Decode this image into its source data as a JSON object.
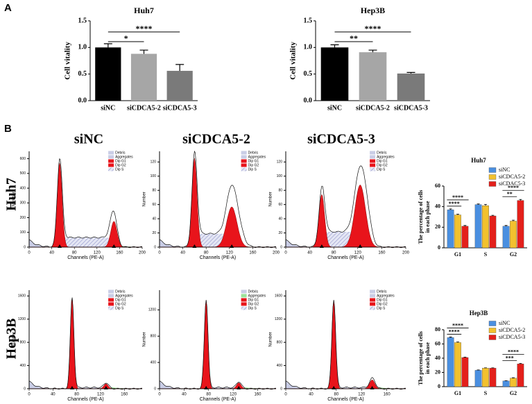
{
  "panel_labels": [
    "A",
    "B"
  ],
  "column_titles": [
    "siNC",
    "siCDCA5-2",
    "siCDCA5-3"
  ],
  "row_titles": [
    "Huh7",
    "Hep3B"
  ],
  "chart_data": [
    {
      "type": "bar",
      "title": "Huh7",
      "y_label": "Cell vitality",
      "categories": [
        "siNC",
        "siCDCA5-2",
        "siCDCA5-3"
      ],
      "values": [
        1.0,
        0.88,
        0.56
      ],
      "errors": [
        0.07,
        0.07,
        0.12
      ],
      "colors": [
        "#000000",
        "#a6a6a6",
        "#7a7a7a"
      ],
      "ylim": [
        0,
        1.5
      ],
      "yticks": [
        {
          "value": 0,
          "label": "0.0"
        },
        {
          "value": 0.5,
          "label": "0.5"
        },
        {
          "value": 1,
          "label": "1.0"
        },
        {
          "value": 1.5,
          "label": "1.5"
        }
      ],
      "significance": [
        {
          "label": "*",
          "pair": [
            "siNC",
            "siCDCA5-2"
          ]
        },
        {
          "label": "****",
          "pair": [
            "siNC",
            "siCDCA5-3"
          ]
        }
      ]
    },
    {
      "type": "bar",
      "title": "Hep3B",
      "y_label": "Cell vitality",
      "categories": [
        "siNC",
        "siCDCA5-2",
        "siCDCA5-3"
      ],
      "values": [
        1.0,
        0.91,
        0.51
      ],
      "errors": [
        0.05,
        0.04,
        0.02
      ],
      "colors": [
        "#000000",
        "#a6a6a6",
        "#7a7a7a"
      ],
      "ylim": [
        0,
        1.5
      ],
      "yticks": [
        {
          "value": 0,
          "label": "0.0"
        },
        {
          "value": 0.5,
          "label": "0.5"
        },
        {
          "value": 1,
          "label": "1.0"
        },
        {
          "value": 1.5,
          "label": "1.5"
        }
      ],
      "significance": [
        {
          "label": "**",
          "pair": [
            "siNC",
            "siCDCA5-2"
          ]
        },
        {
          "label": "****",
          "pair": [
            "siNC",
            "siCDCA5-3"
          ]
        }
      ]
    },
    {
      "type": "flow-histogram",
      "x_label": "Channels (PE-A)",
      "y_label": "Number",
      "xlim": [
        0,
        200
      ],
      "xticks": [
        0,
        40,
        80,
        120,
        160,
        200
      ],
      "ylim": [
        0,
        650
      ],
      "yticks": [
        0,
        100,
        200,
        300,
        400,
        500,
        600
      ],
      "legend": [
        {
          "name": "Debris",
          "color": "#c9cde6"
        },
        {
          "name": "Aggregates",
          "color": "#c9cde6"
        },
        {
          "name": "Dip G1",
          "color": "#e8141b"
        },
        {
          "name": "Dip G2",
          "color": "#e8141b"
        },
        {
          "name": "Dip S",
          "color": "#8a8fd0"
        }
      ]
    },
    {
      "type": "flow-histogram",
      "x_label": "Channels (PE-A)",
      "y_label": "Number",
      "xlim": [
        0,
        200
      ],
      "xticks": [
        0,
        40,
        80,
        120,
        160,
        200
      ],
      "ylim": [
        0,
        135
      ],
      "yticks": [
        0,
        20,
        40,
        60,
        80,
        100,
        120
      ],
      "legend": [
        {
          "name": "Debris",
          "color": "#c9cde6"
        },
        {
          "name": "Aggregates",
          "color": "#c9cde6"
        },
        {
          "name": "Dip G1",
          "color": "#e8141b"
        },
        {
          "name": "Dip G2",
          "color": "#e8141b"
        },
        {
          "name": "Dip S",
          "color": "#8a8fd0"
        }
      ]
    },
    {
      "type": "flow-histogram",
      "x_label": "Channels (PE-A)",
      "y_label": "Number",
      "xlim": [
        0,
        200
      ],
      "xticks": [
        0,
        40,
        80,
        120,
        160,
        200
      ],
      "ylim": [
        0,
        135
      ],
      "yticks": [
        0,
        20,
        40,
        60,
        80,
        100,
        120
      ],
      "legend": [
        {
          "name": "Debris",
          "color": "#c9cde6"
        },
        {
          "name": "Aggregates",
          "color": "#c9cde6"
        },
        {
          "name": "Dip G1",
          "color": "#e8141b"
        },
        {
          "name": "Dip G2",
          "color": "#e8141b"
        },
        {
          "name": "Dip S",
          "color": "#8a8fd0"
        }
      ]
    },
    {
      "type": "flow-histogram",
      "x_label": "Channels (PE-A)",
      "y_label": "Number",
      "xlim": [
        0,
        190
      ],
      "xticks": [
        0,
        40,
        80,
        120,
        160
      ],
      "ylim": [
        0,
        1700
      ],
      "yticks": [
        0,
        400,
        800,
        1200,
        1600
      ],
      "legend": [
        {
          "name": "Debris",
          "color": "#c9cde6"
        },
        {
          "name": "Aggregates",
          "color": "#c9cde6"
        },
        {
          "name": "Dip G1",
          "color": "#e8141b"
        },
        {
          "name": "Dip G2",
          "color": "#e8141b"
        },
        {
          "name": "Dip S",
          "color": "#8a8fd0"
        }
      ]
    },
    {
      "type": "flow-histogram",
      "x_label": "Channels (PE-A)",
      "y_label": "Number",
      "xlim": [
        0,
        190
      ],
      "xticks": [
        0,
        40,
        80,
        120,
        160
      ],
      "ylim": [
        0,
        1500
      ],
      "yticks": [
        0,
        400,
        800,
        1200
      ],
      "legend": [
        {
          "name": "Debris",
          "color": "#c9cde6"
        },
        {
          "name": "Aggregates",
          "color": "#9be39b"
        },
        {
          "name": "Dip G1",
          "color": "#e8141b"
        },
        {
          "name": "Dip G2",
          "color": "#e8141b"
        },
        {
          "name": "Dip S",
          "color": "#8a8fd0"
        }
      ]
    },
    {
      "type": "flow-histogram",
      "x_label": "Channels (PE-A)",
      "y_label": "Number",
      "xlim": [
        0,
        190
      ],
      "xticks": [
        0,
        40,
        80,
        120,
        160
      ],
      "ylim": [
        0,
        1700
      ],
      "yticks": [
        0,
        400,
        800,
        1200,
        1600
      ],
      "legend": [
        {
          "name": "Debris",
          "color": "#c9cde6"
        },
        {
          "name": "Aggregates",
          "color": "#c9cde6"
        },
        {
          "name": "Dip G1",
          "color": "#e8141b"
        },
        {
          "name": "Dip G2",
          "color": "#e8141b"
        },
        {
          "name": "Dip S",
          "color": "#8a8fd0"
        }
      ]
    },
    {
      "type": "grouped-bar",
      "title": "Huh7",
      "y_label": [
        "The percentage of cells",
        "in each phase"
      ],
      "categories": [
        "G1",
        "S",
        "G2"
      ],
      "series": [
        {
          "name": "siNC",
          "color": "#4a8fe0",
          "values": [
            37,
            42,
            21
          ],
          "errors": [
            0.8,
            0.6,
            0.7
          ]
        },
        {
          "name": "siCDCA5-2",
          "color": "#f2c12e",
          "values": [
            32,
            41,
            26
          ],
          "errors": [
            0.8,
            1.2,
            0.9
          ]
        },
        {
          "name": "siCDAC5-3",
          "color": "#e3201b",
          "values": [
            21,
            31,
            46
          ],
          "errors": [
            0.7,
            0.6,
            1.0
          ]
        }
      ],
      "ylim": [
        0,
        60
      ],
      "yticks": [
        0,
        20,
        40,
        60
      ],
      "legend": "top-right",
      "significance": [
        {
          "label": "****",
          "category": "G1",
          "pair": [
            "siNC",
            "siCDCA5-2"
          ]
        },
        {
          "label": "****",
          "category": "G1",
          "pair": [
            "siNC",
            "siCDAC5-3"
          ]
        },
        {
          "label": "**",
          "category": "G2",
          "pair": [
            "siNC",
            "siCDCA5-2"
          ]
        },
        {
          "label": "****",
          "category": "G2",
          "pair": [
            "siNC",
            "siCDAC5-3"
          ]
        }
      ]
    },
    {
      "type": "grouped-bar",
      "title": "Hep3B",
      "y_label": [
        "The percentage of cells",
        "in each phase"
      ],
      "categories": [
        "G1",
        "S",
        "G2"
      ],
      "series": [
        {
          "name": "siNC",
          "color": "#4a8fe0",
          "values": [
            69,
            23,
            8
          ],
          "errors": [
            0.8,
            0.5,
            0.4
          ]
        },
        {
          "name": "siCDCA5-2",
          "color": "#f2c12e",
          "values": [
            62,
            26,
            12
          ],
          "errors": [
            0.8,
            0.5,
            0.5
          ]
        },
        {
          "name": "siCDCA5-3",
          "color": "#e3201b",
          "values": [
            41,
            26,
            32
          ],
          "errors": [
            0.6,
            0.5,
            0.7
          ]
        }
      ],
      "ylim": [
        0,
        80
      ],
      "yticks": [
        0,
        20,
        40,
        60,
        80
      ],
      "legend": "top-right",
      "significance": [
        {
          "label": "****",
          "category": "G1",
          "pair": [
            "siNC",
            "siCDCA5-2"
          ]
        },
        {
          "label": "****",
          "category": "G1",
          "pair": [
            "siNC",
            "siCDCA5-3"
          ]
        },
        {
          "label": "***",
          "category": "G2",
          "pair": [
            "siNC",
            "siCDCA5-2"
          ]
        },
        {
          "label": "****",
          "category": "G2",
          "pair": [
            "siNC",
            "siCDCA5-3"
          ]
        }
      ]
    }
  ]
}
